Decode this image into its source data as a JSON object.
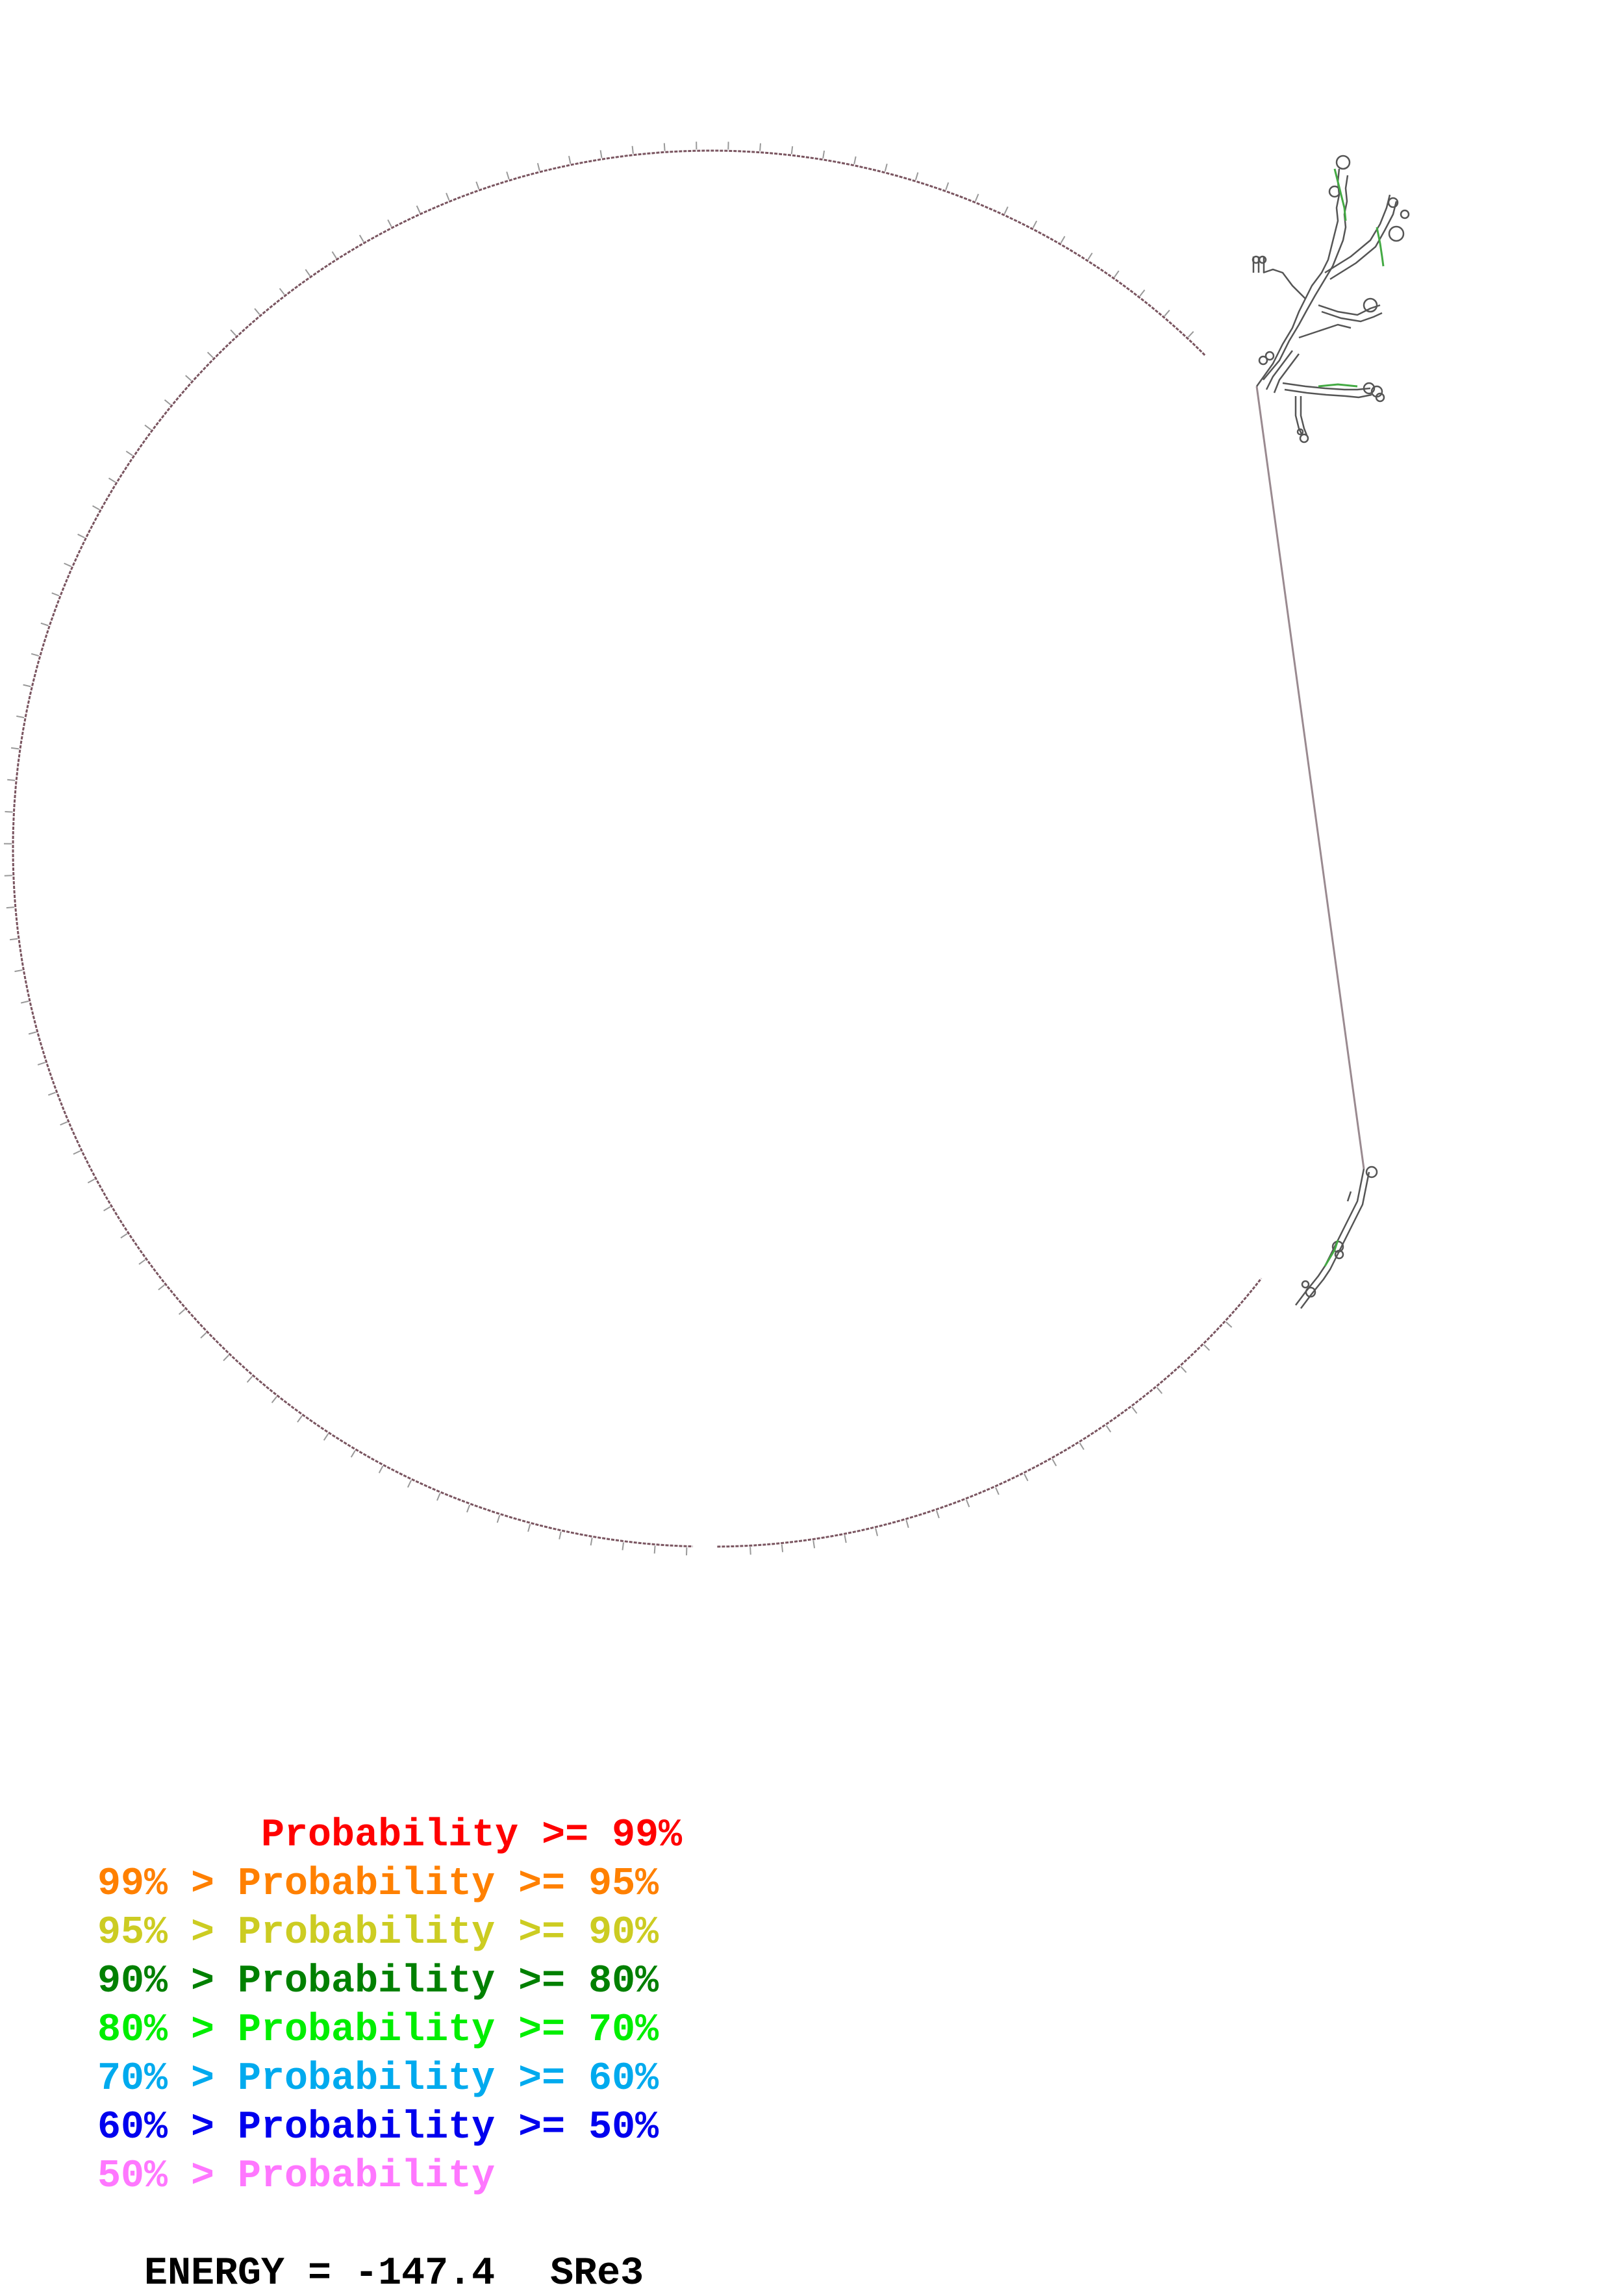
{
  "legend": {
    "items": [
      {
        "text": "       Probability >= 99%",
        "color": "#ff0000"
      },
      {
        "text": "99% > Probability >= 95%",
        "color": "#ff8000"
      },
      {
        "text": "95% > Probability >= 90%",
        "color": "#cccc22"
      },
      {
        "text": "90% > Probability >= 80%",
        "color": "#008000"
      },
      {
        "text": "80% > Probability >= 70%",
        "color": "#00ee00"
      },
      {
        "text": "70% > Probability >= 60%",
        "color": "#00aaee"
      },
      {
        "text": "60% > Probability >= 50%",
        "color": "#0000ee"
      },
      {
        "text": "50% > Probability",
        "color": "#ff77ff"
      }
    ]
  },
  "energy": {
    "label": "ENERGY = -147.4",
    "name": "SRe3"
  },
  "colors": {
    "backbone": "#7a5560",
    "tick": "#999999",
    "structure": "#555555",
    "helix_green": "#44aa44"
  }
}
